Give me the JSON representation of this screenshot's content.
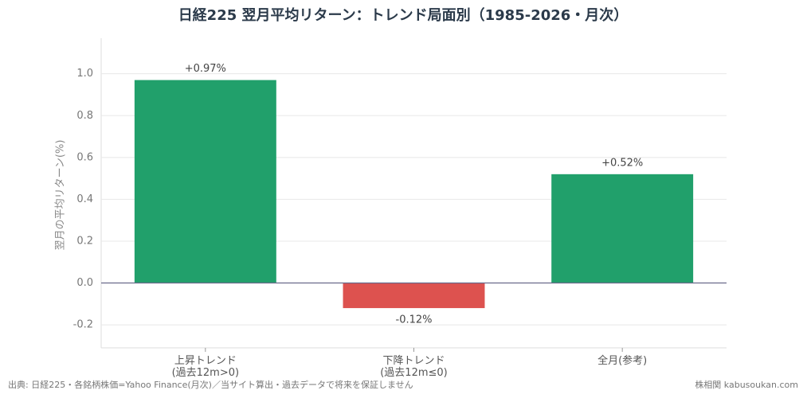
{
  "chart_data": {
    "type": "bar",
    "title": "日経225 翌月平均リターン：トレンド局面別（1985-2026・月次）",
    "y_label": "翌月の平均リターン(%)",
    "categories": [
      "上昇トレンド\n(過去12m>0)",
      "下降トレンド\n(過去12m≤0)",
      "全月(参考)"
    ],
    "values": [
      0.97,
      -0.12,
      0.52
    ],
    "value_labels": [
      "+0.97%",
      "-0.12%",
      "+0.52%"
    ],
    "colors": [
      "#21a06b",
      "#dd524f",
      "#21a06b"
    ],
    "ylim": [
      -0.31,
      1.17
    ],
    "yticks": [
      -0.2,
      {
        "value": 0,
        "label": "0.0"
      },
      0.2,
      0.4,
      0.6,
      0.8,
      {
        "value": 1,
        "label": "1.0"
      }
    ],
    "grid": true,
    "source": "出典: 日経225・各銘柄株価=Yahoo Finance(月次)／当サイト算出・過去データで将来を保証しません",
    "credit": "株相関 kabusoukan.com"
  }
}
